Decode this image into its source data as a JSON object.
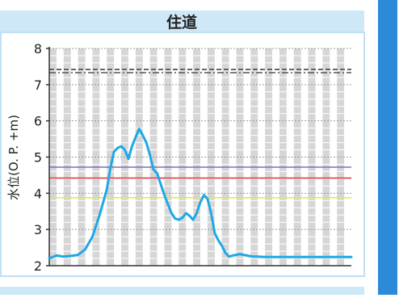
{
  "title": "住道",
  "colors": {
    "header_bg": "#cfe8f8",
    "panel_border": "#bfe0f5",
    "band": "#d6d6d6",
    "series": "#1ea8e6",
    "scrollbar": "#2d8ad8"
  },
  "chart_data": {
    "type": "line",
    "title": "住道",
    "xlabel": "",
    "ylabel": "水位(O. P. +m)",
    "ylim": [
      2,
      8
    ],
    "yticks": [
      "2",
      "3",
      "4",
      "5",
      "6",
      "7",
      "8"
    ],
    "grid": true,
    "x_units": "time periods (unlabeled)",
    "x_count": 42,
    "thresholds": [
      {
        "value": 7.42,
        "color": "#333333",
        "style": "dashed"
      },
      {
        "value": 7.33,
        "color": "#555555",
        "style": "dashdot"
      },
      {
        "value": 4.72,
        "color": "#7a6fc9",
        "style": "solid"
      },
      {
        "value": 4.42,
        "color": "#e0303a",
        "style": "solid"
      },
      {
        "value": 3.88,
        "color": "#e8e83a",
        "style": "solid"
      }
    ],
    "series": [
      {
        "color": "#1ea8e6",
        "x": [
          0,
          1,
          2,
          3,
          4,
          5,
          6,
          7,
          8,
          8.5,
          9,
          9.5,
          10,
          10.5,
          11,
          11.5,
          12,
          12.5,
          13,
          13.5,
          14,
          14.5,
          15,
          15.5,
          16,
          16.5,
          17,
          17.5,
          18,
          18.5,
          19,
          19.5,
          20,
          20.5,
          21,
          21.5,
          22,
          22.5,
          23,
          23.5,
          24,
          24.5,
          25,
          25.5,
          26,
          26.5,
          27,
          27.5,
          28,
          28.5,
          29,
          30,
          31,
          32,
          33,
          34,
          35,
          36,
          37,
          38,
          39,
          40,
          41,
          42
        ],
        "values": [
          2.2,
          2.28,
          2.25,
          2.27,
          2.3,
          2.45,
          2.8,
          3.4,
          4.1,
          4.7,
          5.15,
          5.25,
          5.3,
          5.2,
          4.95,
          5.3,
          5.55,
          5.78,
          5.6,
          5.4,
          5.05,
          4.65,
          4.55,
          4.25,
          3.95,
          3.7,
          3.45,
          3.3,
          3.27,
          3.32,
          3.45,
          3.38,
          3.27,
          3.45,
          3.75,
          3.95,
          3.85,
          3.45,
          2.9,
          2.7,
          2.55,
          2.35,
          2.25,
          2.28,
          2.3,
          2.32,
          2.3,
          2.28,
          2.26,
          2.25,
          2.25,
          2.24,
          2.24,
          2.24,
          2.24,
          2.24,
          2.24,
          2.24,
          2.24,
          2.24,
          2.24,
          2.24,
          2.24,
          2.24
        ]
      }
    ]
  }
}
